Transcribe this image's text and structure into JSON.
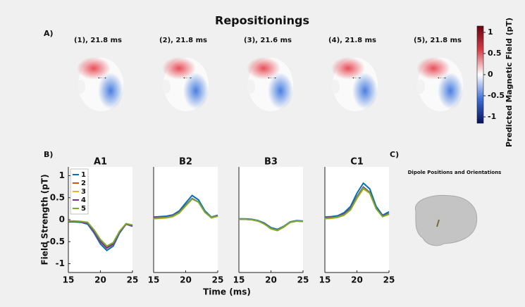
{
  "title": "Repositionings",
  "panel_labels": [
    "A)",
    "B)",
    "C)"
  ],
  "head_maps": [
    {
      "title": "(1), 21.8 ms"
    },
    {
      "title": "(2), 21.8 ms"
    },
    {
      "title": "(3), 21.6 ms"
    },
    {
      "title": "(4), 21.8 ms"
    },
    {
      "title": "(5), 21.8 ms"
    }
  ],
  "colorbar": {
    "label": "Predicted Magnetic Field (pT)",
    "lim": [
      -1.15,
      1.15
    ],
    "ticks": [
      1,
      0.5,
      0,
      -0.5,
      -1
    ]
  },
  "xlabel": "Time (ms)",
  "chart_data": [
    {
      "type": "line",
      "title": "A1",
      "ylabel": "Field Strength (pT)",
      "x": [
        15,
        16,
        17,
        18,
        19,
        20,
        21,
        22,
        23,
        24,
        25
      ],
      "xlim": [
        15,
        25
      ],
      "xticks": [
        15,
        20,
        25
      ],
      "ylim": [
        -1.2,
        1.2
      ],
      "yticks": [
        -1,
        -0.5,
        0,
        0.5,
        1
      ],
      "legend": "top-left",
      "series": [
        {
          "name": "1",
          "color": "#0072bd",
          "values": [
            -0.05,
            -0.05,
            -0.06,
            -0.1,
            -0.3,
            -0.55,
            -0.7,
            -0.6,
            -0.3,
            -0.1,
            -0.15
          ]
        },
        {
          "name": "2",
          "color": "#d95319",
          "values": [
            -0.04,
            -0.04,
            -0.05,
            -0.08,
            -0.27,
            -0.5,
            -0.65,
            -0.56,
            -0.28,
            -0.1,
            -0.14
          ]
        },
        {
          "name": "3",
          "color": "#edb120",
          "values": [
            -0.03,
            -0.03,
            -0.04,
            -0.07,
            -0.24,
            -0.46,
            -0.6,
            -0.53,
            -0.27,
            -0.09,
            -0.13
          ]
        },
        {
          "name": "4",
          "color": "#7e2f8e",
          "values": [
            -0.04,
            -0.04,
            -0.05,
            -0.08,
            -0.26,
            -0.49,
            -0.64,
            -0.55,
            -0.28,
            -0.1,
            -0.14
          ]
        },
        {
          "name": "5",
          "color": "#77ac30",
          "values": [
            -0.03,
            -0.03,
            -0.04,
            -0.06,
            -0.23,
            -0.45,
            -0.6,
            -0.52,
            -0.26,
            -0.09,
            -0.12
          ]
        }
      ]
    },
    {
      "type": "line",
      "title": "B2",
      "x": [
        15,
        16,
        17,
        18,
        19,
        20,
        21,
        22,
        23,
        24,
        25
      ],
      "xlim": [
        15,
        25
      ],
      "xticks": [
        15,
        20,
        25
      ],
      "ylim": [
        -1.2,
        1.2
      ],
      "series": [
        {
          "name": "1",
          "color": "#0072bd",
          "values": [
            0.06,
            0.07,
            0.08,
            0.11,
            0.2,
            0.38,
            0.55,
            0.45,
            0.2,
            0.06,
            0.1
          ]
        },
        {
          "name": "2",
          "color": "#d95319",
          "values": [
            0.04,
            0.05,
            0.06,
            0.09,
            0.17,
            0.33,
            0.48,
            0.4,
            0.17,
            0.05,
            0.09
          ]
        },
        {
          "name": "3",
          "color": "#edb120",
          "values": [
            0.02,
            0.03,
            0.04,
            0.07,
            0.15,
            0.31,
            0.47,
            0.4,
            0.17,
            0.04,
            0.08
          ]
        },
        {
          "name": "4",
          "color": "#7e2f8e",
          "values": [
            0.04,
            0.05,
            0.06,
            0.09,
            0.17,
            0.33,
            0.48,
            0.4,
            0.17,
            0.05,
            0.09
          ]
        },
        {
          "name": "5",
          "color": "#77ac30",
          "values": [
            0.03,
            0.04,
            0.05,
            0.08,
            0.16,
            0.32,
            0.47,
            0.4,
            0.17,
            0.05,
            0.08
          ]
        }
      ]
    },
    {
      "type": "line",
      "title": "B3",
      "x": [
        15,
        16,
        17,
        18,
        19,
        20,
        21,
        22,
        23,
        24,
        25
      ],
      "xlim": [
        15,
        25
      ],
      "xticks": [
        15,
        20,
        25
      ],
      "ylim": [
        -1.2,
        1.2
      ],
      "series": [
        {
          "name": "1",
          "color": "#0072bd",
          "values": [
            0.02,
            0.02,
            0.01,
            -0.02,
            -0.08,
            -0.18,
            -0.22,
            -0.15,
            -0.05,
            -0.02,
            -0.03
          ]
        },
        {
          "name": "2",
          "color": "#d95319",
          "values": [
            0.01,
            0.01,
            0,
            -0.03,
            -0.1,
            -0.2,
            -0.24,
            -0.16,
            -0.06,
            -0.03,
            -0.04
          ]
        },
        {
          "name": "3",
          "color": "#edb120",
          "values": [
            0.01,
            0.01,
            0,
            -0.03,
            -0.1,
            -0.21,
            -0.25,
            -0.17,
            -0.06,
            -0.03,
            -0.04
          ]
        },
        {
          "name": "4",
          "color": "#7e2f8e",
          "values": [
            0.01,
            0.01,
            0,
            -0.03,
            -0.09,
            -0.2,
            -0.24,
            -0.16,
            -0.06,
            -0.03,
            -0.04
          ]
        },
        {
          "name": "5",
          "color": "#77ac30",
          "values": [
            0.01,
            0.01,
            0,
            -0.03,
            -0.1,
            -0.2,
            -0.24,
            -0.16,
            -0.06,
            -0.03,
            -0.04
          ]
        }
      ]
    },
    {
      "type": "line",
      "title": "C1",
      "x": [
        15,
        16,
        17,
        18,
        19,
        20,
        21,
        22,
        23,
        24,
        25
      ],
      "xlim": [
        15,
        25
      ],
      "xticks": [
        15,
        20,
        25
      ],
      "ylim": [
        -1.2,
        1.2
      ],
      "series": [
        {
          "name": "1",
          "color": "#0072bd",
          "values": [
            0.06,
            0.07,
            0.09,
            0.16,
            0.3,
            0.6,
            0.83,
            0.7,
            0.3,
            0.1,
            0.18
          ]
        },
        {
          "name": "2",
          "color": "#d95319",
          "values": [
            0.04,
            0.05,
            0.07,
            0.13,
            0.25,
            0.52,
            0.74,
            0.62,
            0.26,
            0.08,
            0.14
          ]
        },
        {
          "name": "3",
          "color": "#edb120",
          "values": [
            0.02,
            0.03,
            0.05,
            0.1,
            0.22,
            0.48,
            0.7,
            0.6,
            0.25,
            0.07,
            0.12
          ]
        },
        {
          "name": "4",
          "color": "#7e2f8e",
          "values": [
            0.04,
            0.05,
            0.07,
            0.13,
            0.25,
            0.52,
            0.74,
            0.62,
            0.26,
            0.08,
            0.14
          ]
        },
        {
          "name": "5",
          "color": "#77ac30",
          "values": [
            0.03,
            0.04,
            0.06,
            0.11,
            0.23,
            0.5,
            0.72,
            0.61,
            0.25,
            0.07,
            0.13
          ]
        }
      ]
    }
  ],
  "dipole_panel": {
    "title": "Dipole Positions and Orientations"
  }
}
